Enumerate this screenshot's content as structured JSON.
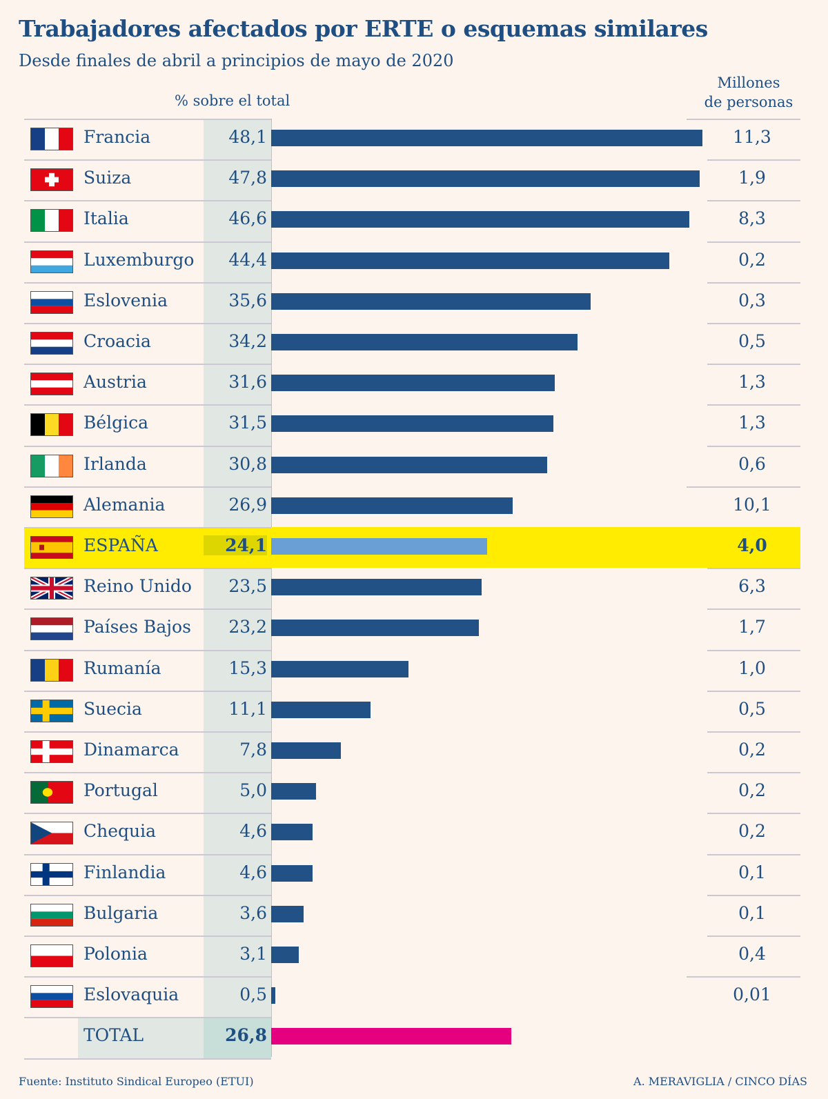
{
  "chart_data": {
    "type": "bar",
    "orientation": "horizontal",
    "title": "Trabajadores afectados por ERTE o esquemas similares",
    "subtitle": "Desde finales de abril a principios de mayo de 2020",
    "value_header": "% sobre el total",
    "secondary_header_line1": "Millones",
    "secondary_header_line2": "de personas",
    "bar_color": "#215185",
    "highlight_color": "#ffec00",
    "highlight_bar_color": "#6a9fd5",
    "total_bar_color": "#e4007e",
    "xlim": [
      0,
      48.1
    ],
    "rows": [
      {
        "country": "Francia",
        "pct": "48,1",
        "value": 48.1,
        "millions": "11,3",
        "flag": "france-flag-icon"
      },
      {
        "country": "Suiza",
        "pct": "47,8",
        "value": 47.8,
        "millions": "1,9",
        "flag": "switzerland-flag-icon"
      },
      {
        "country": "Italia",
        "pct": "46,6",
        "value": 46.6,
        "millions": "8,3",
        "flag": "italy-flag-icon"
      },
      {
        "country": "Luxemburgo",
        "pct": "44,4",
        "value": 44.4,
        "millions": "0,2",
        "flag": "luxembourg-flag-icon"
      },
      {
        "country": "Eslovenia",
        "pct": "35,6",
        "value": 35.6,
        "millions": "0,3",
        "flag": "slovenia-flag-icon"
      },
      {
        "country": "Croacia",
        "pct": "34,2",
        "value": 34.2,
        "millions": "0,5",
        "flag": "croatia-flag-icon"
      },
      {
        "country": "Austria",
        "pct": "31,6",
        "value": 31.6,
        "millions": "1,3",
        "flag": "austria-flag-icon"
      },
      {
        "country": "Bélgica",
        "pct": "31,5",
        "value": 31.5,
        "millions": "1,3",
        "flag": "belgium-flag-icon"
      },
      {
        "country": "Irlanda",
        "pct": "30,8",
        "value": 30.8,
        "millions": "0,6",
        "flag": "ireland-flag-icon"
      },
      {
        "country": "Alemania",
        "pct": "26,9",
        "value": 26.9,
        "millions": "10,1",
        "flag": "germany-flag-icon"
      },
      {
        "country": "ESPAÑA",
        "pct": "24,1",
        "value": 24.1,
        "millions": "4,0",
        "flag": "spain-flag-icon",
        "highlight": true
      },
      {
        "country": "Reino Unido",
        "pct": "23,5",
        "value": 23.5,
        "millions": "6,3",
        "flag": "uk-flag-icon"
      },
      {
        "country": "Países Bajos",
        "pct": "23,2",
        "value": 23.2,
        "millions": "1,7",
        "flag": "netherlands-flag-icon"
      },
      {
        "country": "Rumanía",
        "pct": "15,3",
        "value": 15.3,
        "millions": "1,0",
        "flag": "romania-flag-icon"
      },
      {
        "country": "Suecia",
        "pct": "11,1",
        "value": 11.1,
        "millions": "0,5",
        "flag": "sweden-flag-icon"
      },
      {
        "country": "Dinamarca",
        "pct": "7,8",
        "value": 7.8,
        "millions": "0,2",
        "flag": "denmark-flag-icon"
      },
      {
        "country": "Portugal",
        "pct": "5,0",
        "value": 5.0,
        "millions": "0,2",
        "flag": "portugal-flag-icon"
      },
      {
        "country": "Chequia",
        "pct": "4,6",
        "value": 4.6,
        "millions": "0,2",
        "flag": "czechia-flag-icon"
      },
      {
        "country": "Finlandia",
        "pct": "4,6",
        "value": 4.6,
        "millions": "0,1",
        "flag": "finland-flag-icon"
      },
      {
        "country": "Bulgaria",
        "pct": "3,6",
        "value": 3.6,
        "millions": "0,1",
        "flag": "bulgaria-flag-icon"
      },
      {
        "country": "Polonia",
        "pct": "3,1",
        "value": 3.1,
        "millions": "0,4",
        "flag": "poland-flag-icon"
      },
      {
        "country": "Eslovaquia",
        "pct": "0,5",
        "value": 0.5,
        "millions": "0,01",
        "flag": "slovakia-flag-icon"
      }
    ],
    "total": {
      "label": "TOTAL",
      "pct": "26,8",
      "value": 26.8
    }
  },
  "footer": {
    "source": "Fuente: Instituto Sindical Europeo (ETUI)",
    "credit": "A. MERAVIGLIA / CINCO DÍAS"
  }
}
